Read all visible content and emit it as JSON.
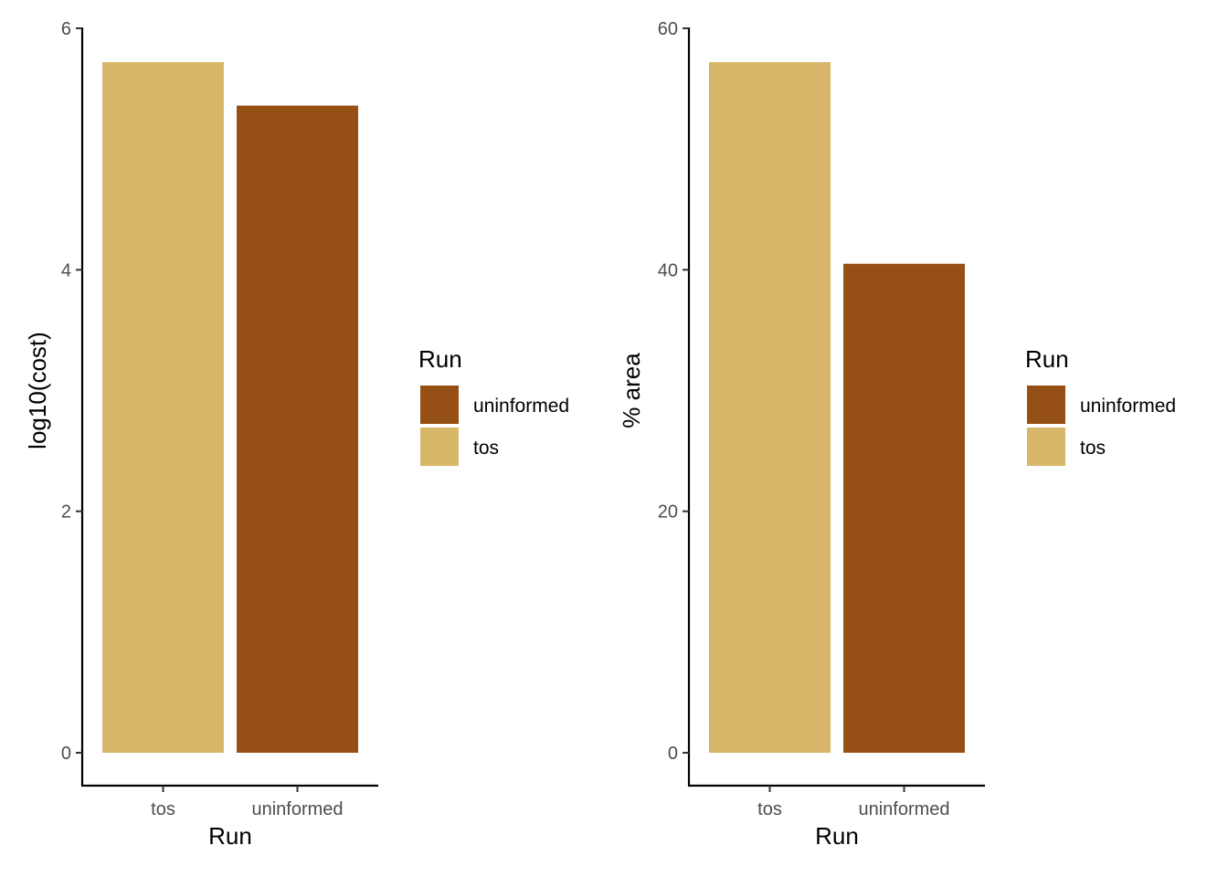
{
  "chart_data": [
    {
      "type": "bar",
      "categories": [
        "tos",
        "uninformed"
      ],
      "values": [
        5.72,
        5.36
      ],
      "xlabel": "Run",
      "ylabel": "log10(cost)",
      "ylim": [
        0,
        6
      ],
      "yticks": [
        0,
        2,
        4,
        6
      ],
      "grid": false,
      "legend": {
        "title": "Run",
        "position": "right",
        "entries": [
          {
            "label": "uninformed",
            "color": "#964F15"
          },
          {
            "label": "tos",
            "color": "#D8B76A"
          }
        ]
      },
      "bar_colors": {
        "tos": "#D8B76A",
        "uninformed": "#964F15"
      }
    },
    {
      "type": "bar",
      "categories": [
        "tos",
        "uninformed"
      ],
      "values": [
        57.2,
        40.5
      ],
      "xlabel": "Run",
      "ylabel": "% area",
      "ylim": [
        0,
        60
      ],
      "yticks": [
        0,
        20,
        40,
        60
      ],
      "grid": false,
      "legend": {
        "title": "Run",
        "position": "right",
        "entries": [
          {
            "label": "uninformed",
            "color": "#964F15"
          },
          {
            "label": "tos",
            "color": "#D8B76A"
          }
        ]
      },
      "bar_colors": {
        "tos": "#D8B76A",
        "uninformed": "#964F15"
      }
    }
  ]
}
